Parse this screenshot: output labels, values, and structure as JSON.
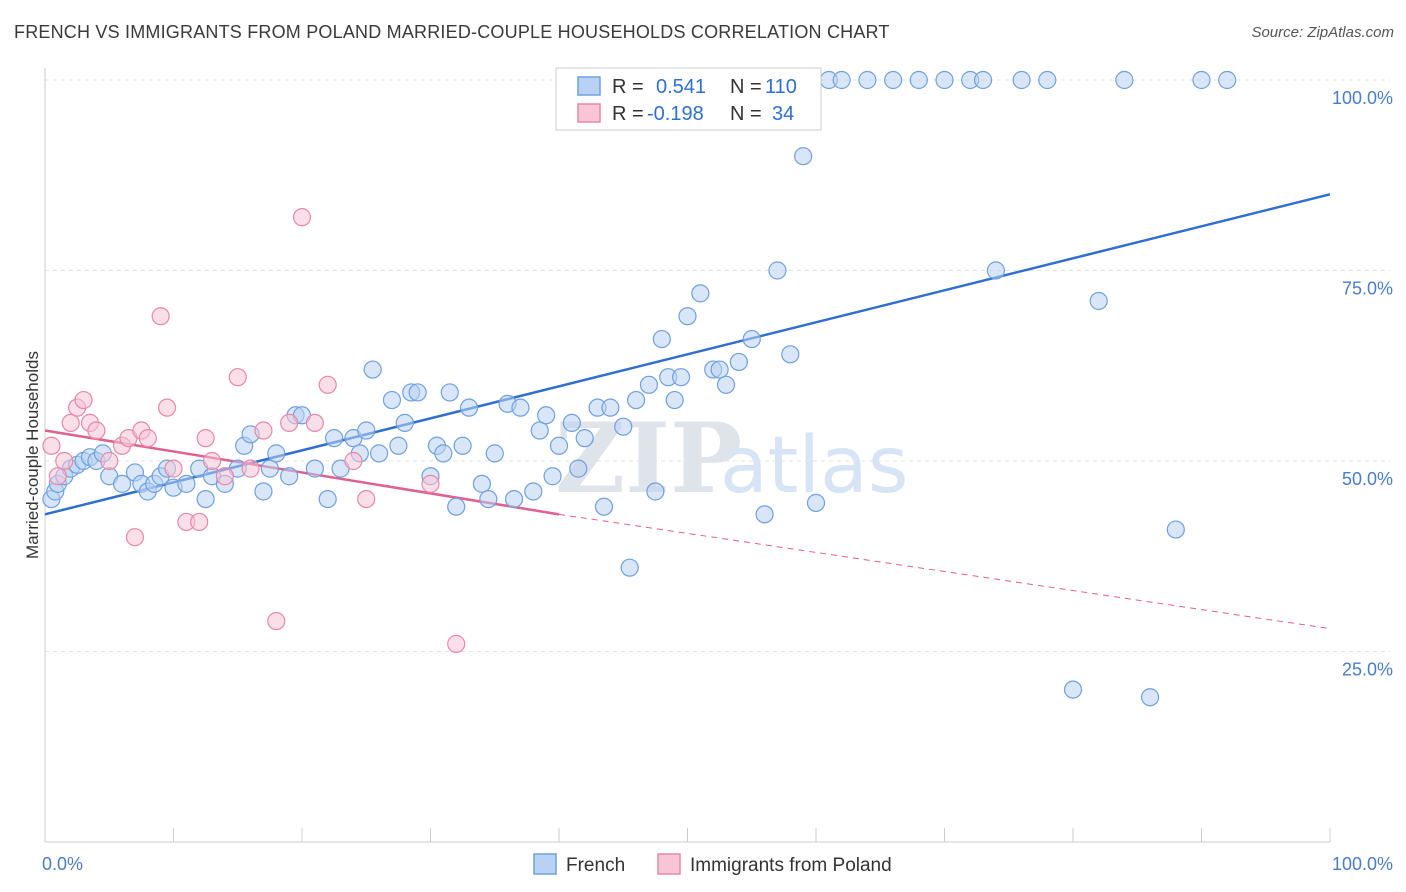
{
  "header": {
    "title": "FRENCH VS IMMIGRANTS FROM POLAND MARRIED-COUPLE HOUSEHOLDS CORRELATION CHART",
    "source": "Source: ZipAtlas.com"
  },
  "colors": {
    "french": "#6fa0e0",
    "french_fill": "#b9d1f3",
    "french_line": "#2f6fd1",
    "poland": "#e888a6",
    "poland_fill": "#f7c5d5",
    "poland_line": "#e06090",
    "axis_text": "#4a7cc9"
  },
  "legend": {
    "rows": [
      {
        "r_label": "R =",
        "r_value": "0.541",
        "n_label": "N =",
        "n_value": "110"
      },
      {
        "r_label": "R =",
        "r_value": "-0.198",
        "n_label": "N =",
        "n_value": "34"
      }
    ]
  },
  "watermark": {
    "zip": "ZIP",
    "atlas": "atlas"
  },
  "chart_data": {
    "type": "scatter",
    "title": "FRENCH VS IMMIGRANTS FROM POLAND MARRIED-COUPLE HOUSEHOLDS CORRELATION CHART",
    "xlabel": "",
    "ylabel": "Married-couple Households",
    "xlim": [
      0,
      100
    ],
    "ylim": [
      0,
      100
    ],
    "x_tick_labels": [
      "0.0%",
      "100.0%"
    ],
    "y_tick_labels": [
      "25.0%",
      "50.0%",
      "75.0%",
      "100.0%"
    ],
    "y_ticks": [
      25,
      50,
      75,
      100
    ],
    "grid": true,
    "legend_position": "bottom",
    "series": [
      {
        "name": "French",
        "trend": {
          "x": [
            0,
            100
          ],
          "y": [
            43,
            85
          ]
        },
        "points": [
          [
            0.5,
            45
          ],
          [
            0.8,
            46
          ],
          [
            1,
            47
          ],
          [
            1.5,
            48
          ],
          [
            2,
            49
          ],
          [
            2.5,
            49.5
          ],
          [
            3,
            50
          ],
          [
            3.5,
            50.5
          ],
          [
            4,
            50
          ],
          [
            4.5,
            51
          ],
          [
            5,
            48
          ],
          [
            6,
            47
          ],
          [
            7,
            48.5
          ],
          [
            7.5,
            47
          ],
          [
            8,
            46
          ],
          [
            8.5,
            47
          ],
          [
            9,
            48
          ],
          [
            9.5,
            49
          ],
          [
            10,
            46.5
          ],
          [
            11,
            47
          ],
          [
            12,
            49
          ],
          [
            12.5,
            45
          ],
          [
            13,
            48
          ],
          [
            14,
            47
          ],
          [
            15,
            49
          ],
          [
            15.5,
            52
          ],
          [
            16,
            53.5
          ],
          [
            17,
            46
          ],
          [
            17.5,
            49
          ],
          [
            18,
            51
          ],
          [
            19,
            48
          ],
          [
            19.5,
            56
          ],
          [
            20,
            56
          ],
          [
            21,
            49
          ],
          [
            22,
            45
          ],
          [
            22.5,
            53
          ],
          [
            23,
            49
          ],
          [
            24,
            53
          ],
          [
            24.5,
            51
          ],
          [
            25,
            54
          ],
          [
            25.5,
            62
          ],
          [
            26,
            51
          ],
          [
            27,
            58
          ],
          [
            27.5,
            52
          ],
          [
            28,
            55
          ],
          [
            28.5,
            59
          ],
          [
            29,
            59
          ],
          [
            30,
            48
          ],
          [
            30.5,
            52
          ],
          [
            31,
            51
          ],
          [
            31.5,
            59
          ],
          [
            32,
            44
          ],
          [
            32.5,
            52
          ],
          [
            33,
            57
          ],
          [
            34,
            47
          ],
          [
            34.5,
            45
          ],
          [
            35,
            51
          ],
          [
            36,
            57.5
          ],
          [
            36.5,
            45
          ],
          [
            37,
            57
          ],
          [
            38,
            46
          ],
          [
            38.5,
            54
          ],
          [
            39,
            56
          ],
          [
            39.5,
            48
          ],
          [
            40,
            52
          ],
          [
            41,
            55
          ],
          [
            41.5,
            49
          ],
          [
            42,
            53
          ],
          [
            43,
            57
          ],
          [
            43.5,
            44
          ],
          [
            44,
            57
          ],
          [
            45,
            54.5
          ],
          [
            45.5,
            36
          ],
          [
            46,
            58
          ],
          [
            47,
            60
          ],
          [
            47.5,
            46
          ],
          [
            48,
            66
          ],
          [
            48.5,
            61
          ],
          [
            49,
            58
          ],
          [
            49.5,
            61
          ],
          [
            50,
            69
          ],
          [
            51,
            72
          ],
          [
            52,
            62
          ],
          [
            52.5,
            62
          ],
          [
            53,
            60
          ],
          [
            54,
            63
          ],
          [
            55,
            66
          ],
          [
            56,
            43
          ],
          [
            57,
            75
          ],
          [
            58,
            64
          ],
          [
            59,
            90
          ],
          [
            60,
            44.5
          ],
          [
            61,
            103
          ],
          [
            62,
            104
          ],
          [
            64,
            101
          ],
          [
            66,
            101
          ],
          [
            68,
            104
          ],
          [
            70,
            104
          ],
          [
            72,
            101
          ],
          [
            73,
            105
          ],
          [
            74,
            75
          ],
          [
            76,
            101
          ],
          [
            78,
            104
          ],
          [
            80,
            20
          ],
          [
            82,
            71
          ],
          [
            84,
            101
          ],
          [
            86,
            19
          ],
          [
            88,
            41
          ],
          [
            90,
            101
          ],
          [
            92,
            104
          ]
        ]
      },
      {
        "name": "Immigrants from Poland",
        "trend": {
          "x": [
            0,
            40
          ],
          "y": [
            54,
            43
          ]
        },
        "trend_extended": {
          "x": [
            40,
            100
          ],
          "y": [
            43,
            28
          ]
        },
        "points": [
          [
            0.5,
            52
          ],
          [
            1,
            48
          ],
          [
            1.5,
            50
          ],
          [
            2,
            55
          ],
          [
            2.5,
            57
          ],
          [
            3,
            58
          ],
          [
            3.5,
            55
          ],
          [
            4,
            54
          ],
          [
            5,
            50
          ],
          [
            6,
            52
          ],
          [
            6.5,
            53
          ],
          [
            7,
            40
          ],
          [
            7.5,
            54
          ],
          [
            8,
            53
          ],
          [
            9,
            69
          ],
          [
            9.5,
            57
          ],
          [
            10,
            49
          ],
          [
            11,
            42
          ],
          [
            12,
            42
          ],
          [
            12.5,
            53
          ],
          [
            13,
            50
          ],
          [
            14,
            48
          ],
          [
            15,
            61
          ],
          [
            16,
            49
          ],
          [
            17,
            54
          ],
          [
            18,
            29
          ],
          [
            19,
            55
          ],
          [
            20,
            82
          ],
          [
            21,
            55
          ],
          [
            22,
            60
          ],
          [
            24,
            50
          ],
          [
            25,
            45
          ],
          [
            30,
            47
          ],
          [
            32,
            26
          ]
        ]
      }
    ]
  }
}
